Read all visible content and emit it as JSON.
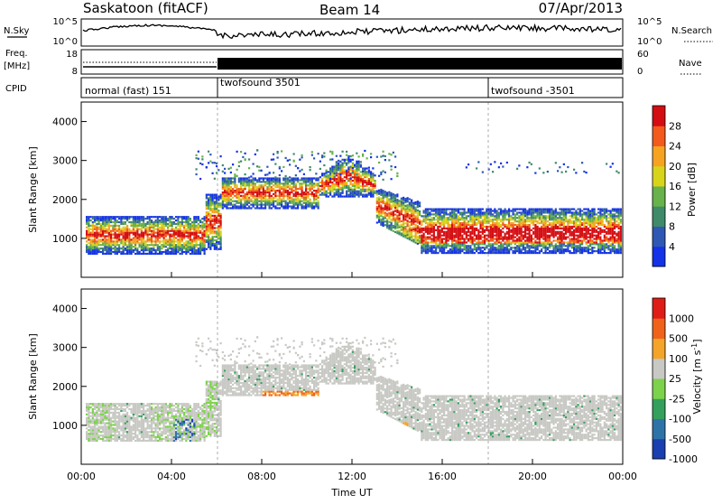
{
  "header": {
    "station": "Saskatoon (fitACF)",
    "beam": "Beam 14",
    "date": "07/Apr/2013"
  },
  "nsky_panel": {
    "left_label": "N.Sky",
    "left_ticks": [
      "10^5",
      "10^0"
    ],
    "right_ticks": [
      "10^5",
      "10^0"
    ],
    "right_label": "N.Search"
  },
  "freq_panel": {
    "left_label_1": "Freq.",
    "left_label_2": "[MHz]",
    "left_ticks": [
      "18",
      "8"
    ],
    "right_ticks": [
      "60",
      "0"
    ],
    "right_label": "Nave"
  },
  "cpid_panel": {
    "label": "CPID",
    "modes": [
      {
        "name": "normal (fast) 151",
        "start": "00:00"
      },
      {
        "name": "twofsound 3501",
        "start": "06:00"
      },
      {
        "name": "twofsound -3501",
        "start": "18:00"
      }
    ]
  },
  "x_axis": {
    "label": "Time UT",
    "ticks": [
      "00:00",
      "04:00",
      "08:00",
      "12:00",
      "16:00",
      "20:00",
      "00:00"
    ]
  },
  "chart_data": [
    {
      "type": "heatmap",
      "name": "power",
      "ylabel": "Slant Range [km]",
      "ylim": [
        0,
        4500
      ],
      "y_ticks": [
        "1000",
        "2000",
        "3000",
        "4000"
      ],
      "xlim_hours": [
        0,
        24
      ],
      "colorbar": {
        "label": "Power [dB]",
        "ticks": [
          "4",
          "8",
          "12",
          "16",
          "20",
          "24",
          "28"
        ],
        "colors": [
          "#1432e8",
          "#2f58b4",
          "#3f8a69",
          "#67b24a",
          "#d8d41a",
          "#f5a321",
          "#f35a1c",
          "#d40d12"
        ]
      },
      "bands": [
        {
          "t": [
            0,
            6
          ],
          "range": [
            750,
            1500
          ],
          "level": "mid"
        },
        {
          "t": [
            6,
            10.5
          ],
          "range": [
            1900,
            2400
          ],
          "level": "high"
        },
        {
          "t": [
            10.5,
            13.5
          ],
          "range": [
            2200,
            3100
          ],
          "level": "mid"
        },
        {
          "t": [
            13,
            24
          ],
          "range": [
            800,
            1700
          ],
          "level": "high"
        }
      ]
    },
    {
      "type": "heatmap",
      "name": "velocity",
      "ylabel": "Slant Range [km]",
      "ylim": [
        0,
        4500
      ],
      "y_ticks": [
        "1000",
        "2000",
        "3000",
        "4000"
      ],
      "xlim_hours": [
        0,
        24
      ],
      "colorbar": {
        "label": "Velocity [m s^-1]",
        "label_main": "Velocity",
        "label_units": "[m s",
        "label_exp": "-1",
        "label_close": "]",
        "ticks": [
          "1000",
          "500",
          "100",
          "25",
          "-25",
          "-100",
          "-500",
          "-1000"
        ],
        "colors": [
          "#1a3fb0",
          "#2e73a8",
          "#34a05c",
          "#7cd24a",
          "#c8c8c4",
          "#f3a429",
          "#f0621a",
          "#e01c16"
        ]
      }
    }
  ]
}
